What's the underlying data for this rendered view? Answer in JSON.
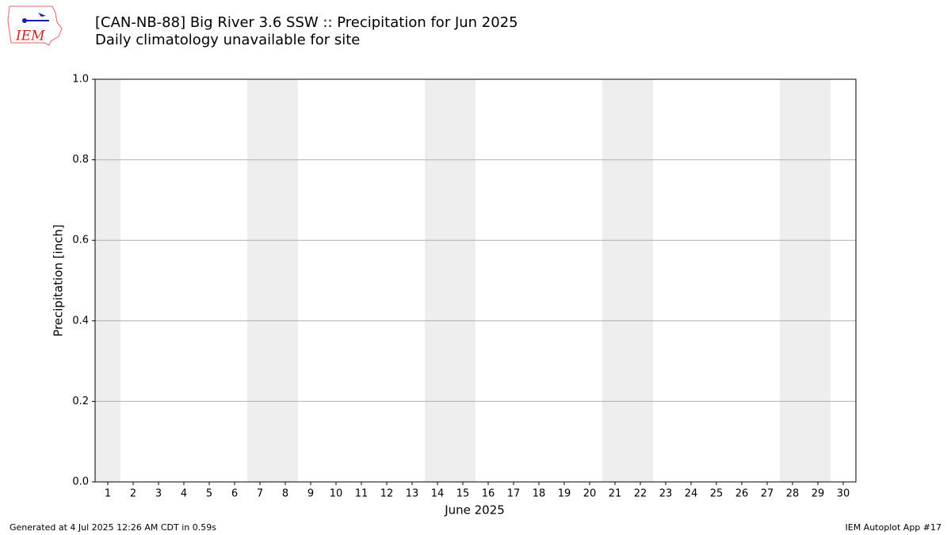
{
  "header": {
    "logo": "IEM"
  },
  "chart_data": {
    "type": "bar",
    "title": "[CAN-NB-88] Big River 3.6 SSW :: Precipitation for Jun 2025",
    "subtitle": "Daily climatology unavailable for site",
    "x_label": "June 2025",
    "y_label": "Precipitation [inch]",
    "xlim": [
      0.5,
      30.5
    ],
    "xticks": [
      1,
      2,
      3,
      4,
      5,
      6,
      7,
      8,
      9,
      10,
      11,
      12,
      13,
      14,
      15,
      16,
      17,
      18,
      19,
      20,
      21,
      22,
      23,
      24,
      25,
      26,
      27,
      28,
      29,
      30
    ],
    "ylim": [
      0,
      1
    ],
    "yticks": [
      {
        "value": 0,
        "label": "0.0"
      },
      {
        "value": 0.2,
        "label": "0.2"
      },
      {
        "value": 0.4,
        "label": "0.4"
      },
      {
        "value": 0.6,
        "label": "0.6"
      },
      {
        "value": 0.8,
        "label": "0.8"
      },
      {
        "value": 1,
        "label": "1.0"
      }
    ],
    "grid": true,
    "shaded_spans": [
      [
        0.5,
        1.5
      ],
      [
        6.5,
        8.5
      ],
      [
        13.5,
        15.5
      ],
      [
        20.5,
        22.5
      ],
      [
        27.5,
        29.5
      ]
    ],
    "shade_color": "#eeeeee"
  },
  "footer": {
    "left": "Generated at 4 Jul 2025 12:26 AM CDT in 0.59s",
    "right": "IEM Autoplot App #17"
  }
}
